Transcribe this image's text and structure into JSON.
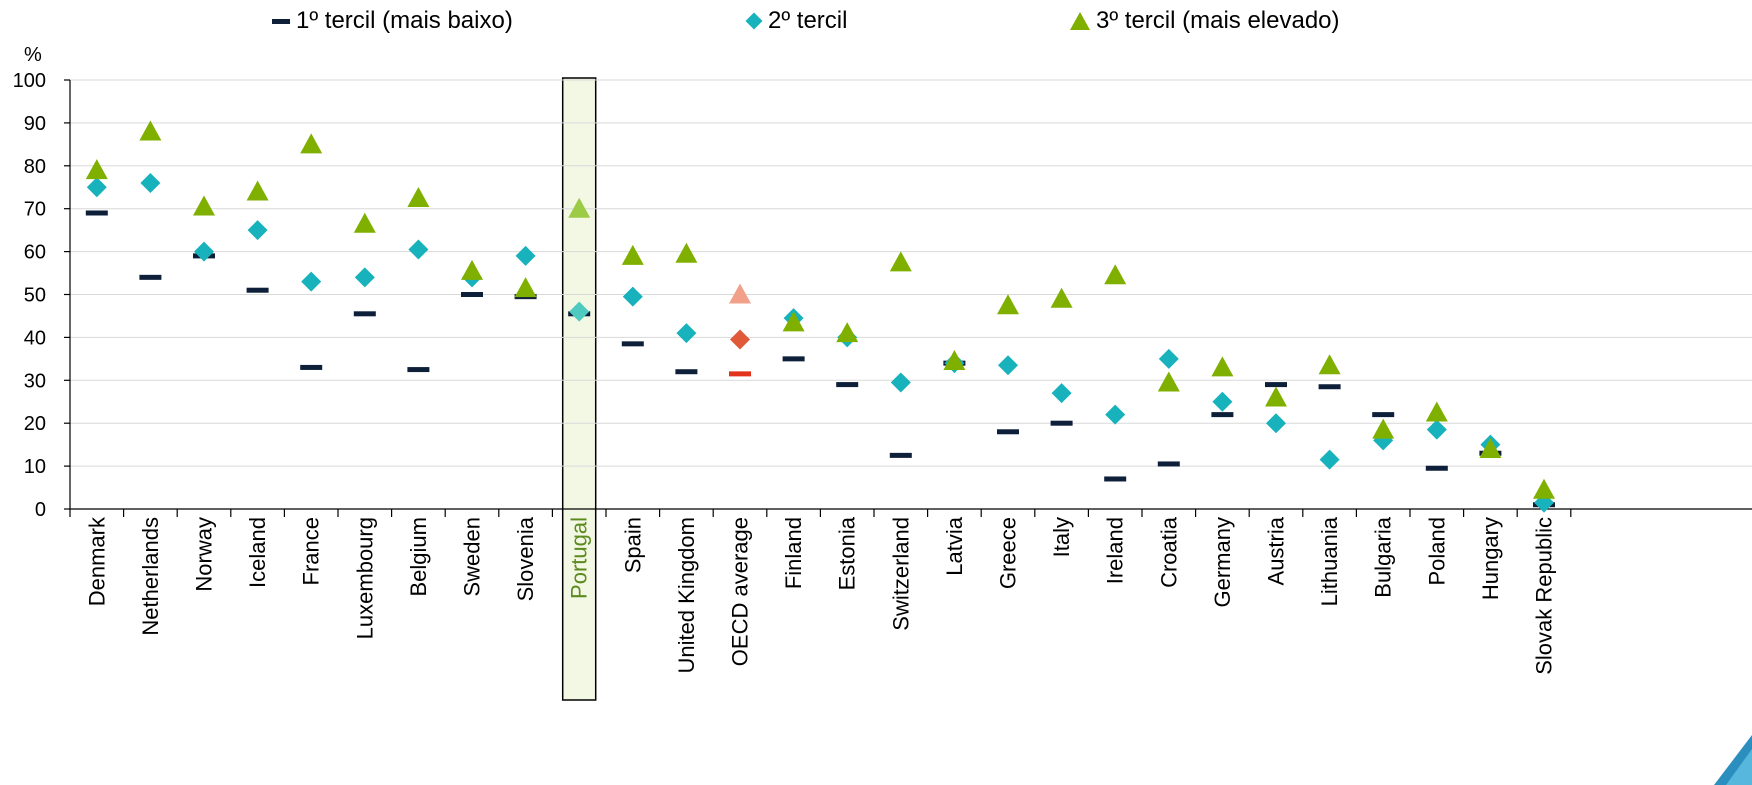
{
  "legend": {
    "t1": "1º tercil (mais baixo)",
    "t2": "2º tercil",
    "t3": "3º tercil (mais elevado)"
  },
  "colors": {
    "t1": "#0e1f3a",
    "t2": "#17b2bc",
    "t3": "#7fb000",
    "highlight_fill": "#f3f8e4",
    "oecd_t1": "#e2321b",
    "oecd_t2": "#e05a3a",
    "oecd_t3": "#f3a08a",
    "portugal_t3": "#9ccc45",
    "portugal_t2": "#4fcac0",
    "portugal_label": "#5c8a1e",
    "grid": "#d9d9d9"
  },
  "chart_data": {
    "type": "scatter",
    "unit_label": "%",
    "ylim": [
      0,
      100
    ],
    "yticks": [
      0,
      10,
      20,
      30,
      40,
      50,
      60,
      70,
      80,
      90,
      100
    ],
    "grid": true,
    "legend_position": "top",
    "highlight_category": "Portugal",
    "reference_category": "OECD average",
    "categories": [
      "Denmark",
      "Netherlands",
      "Norway",
      "Iceland",
      "France",
      "Luxembourg",
      "Belgium",
      "Sweden",
      "Slovenia",
      "Portugal",
      "Spain",
      "United Kingdom",
      "OECD average",
      "Finland",
      "Estonia",
      "Switzerland",
      "Latvia",
      "Greece",
      "Italy",
      "Ireland",
      "Croatia",
      "Germany",
      "Austria",
      "Lithuania",
      "Bulgaria",
      "Poland",
      "Hungary",
      "Slovak Republic"
    ],
    "series": [
      {
        "name": "1º tercil (mais baixo)",
        "marker": "dash",
        "values": [
          69,
          54,
          59,
          51,
          33,
          45.5,
          32.5,
          50,
          49.5,
          45.5,
          38.5,
          32,
          31.5,
          35,
          29,
          12.5,
          34,
          18,
          20,
          7,
          10.5,
          22,
          29,
          28.5,
          22,
          9.5,
          13,
          1
        ]
      },
      {
        "name": "2º tercil",
        "marker": "diamond",
        "values": [
          75,
          76,
          60,
          65,
          53,
          54,
          60.5,
          54,
          59,
          46,
          49.5,
          41,
          39.5,
          44.5,
          40,
          29.5,
          34,
          33.5,
          27,
          22,
          35,
          25,
          20,
          11.5,
          16,
          18.5,
          15,
          1.5
        ]
      },
      {
        "name": "3º tercil (mais elevado)",
        "marker": "triangle",
        "values": [
          79,
          88,
          70.5,
          74,
          85,
          66.5,
          72.5,
          55.5,
          51.5,
          70,
          59,
          59.5,
          50,
          43.5,
          41,
          57.5,
          34.5,
          47.5,
          49,
          54.5,
          29.5,
          33,
          26,
          33.5,
          18.5,
          22.5,
          14,
          4.5
        ]
      }
    ]
  }
}
